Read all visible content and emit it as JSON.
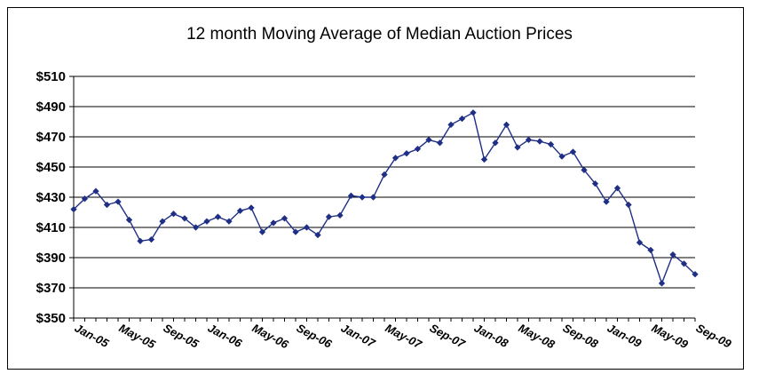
{
  "chart_data": {
    "type": "line",
    "title": "12 month Moving Average of Median Auction Prices",
    "xlabel": "",
    "ylabel": "",
    "ylim": [
      350,
      510
    ],
    "y_tick_labels": [
      "$350",
      "$370",
      "$390",
      "$410",
      "$430",
      "$450",
      "$470",
      "$490",
      "$510"
    ],
    "x_tick_labels": [
      "Jan-05",
      "May-05",
      "Sep-05",
      "Jan-06",
      "May-06",
      "Sep-06",
      "Jan-07",
      "May-07",
      "Sep-07",
      "Jan-08",
      "May-08",
      "Sep-08",
      "Jan-09",
      "May-09",
      "Sep-09"
    ],
    "grid": "horizontal",
    "legend": "none",
    "series_color": "#1F2F86",
    "series": [
      {
        "values": [
          422,
          429,
          434,
          425,
          427,
          415,
          401,
          402,
          414,
          419,
          416,
          410,
          414,
          417,
          414,
          421,
          423,
          407,
          413,
          416,
          407,
          410,
          405,
          417,
          418,
          431,
          430,
          430,
          445,
          456,
          459,
          462,
          468,
          466,
          478,
          482,
          486,
          455,
          466,
          478,
          463,
          468,
          467,
          465,
          457,
          460,
          448,
          439,
          427,
          436,
          425,
          400,
          395,
          373,
          392,
          386,
          379
        ]
      }
    ]
  }
}
